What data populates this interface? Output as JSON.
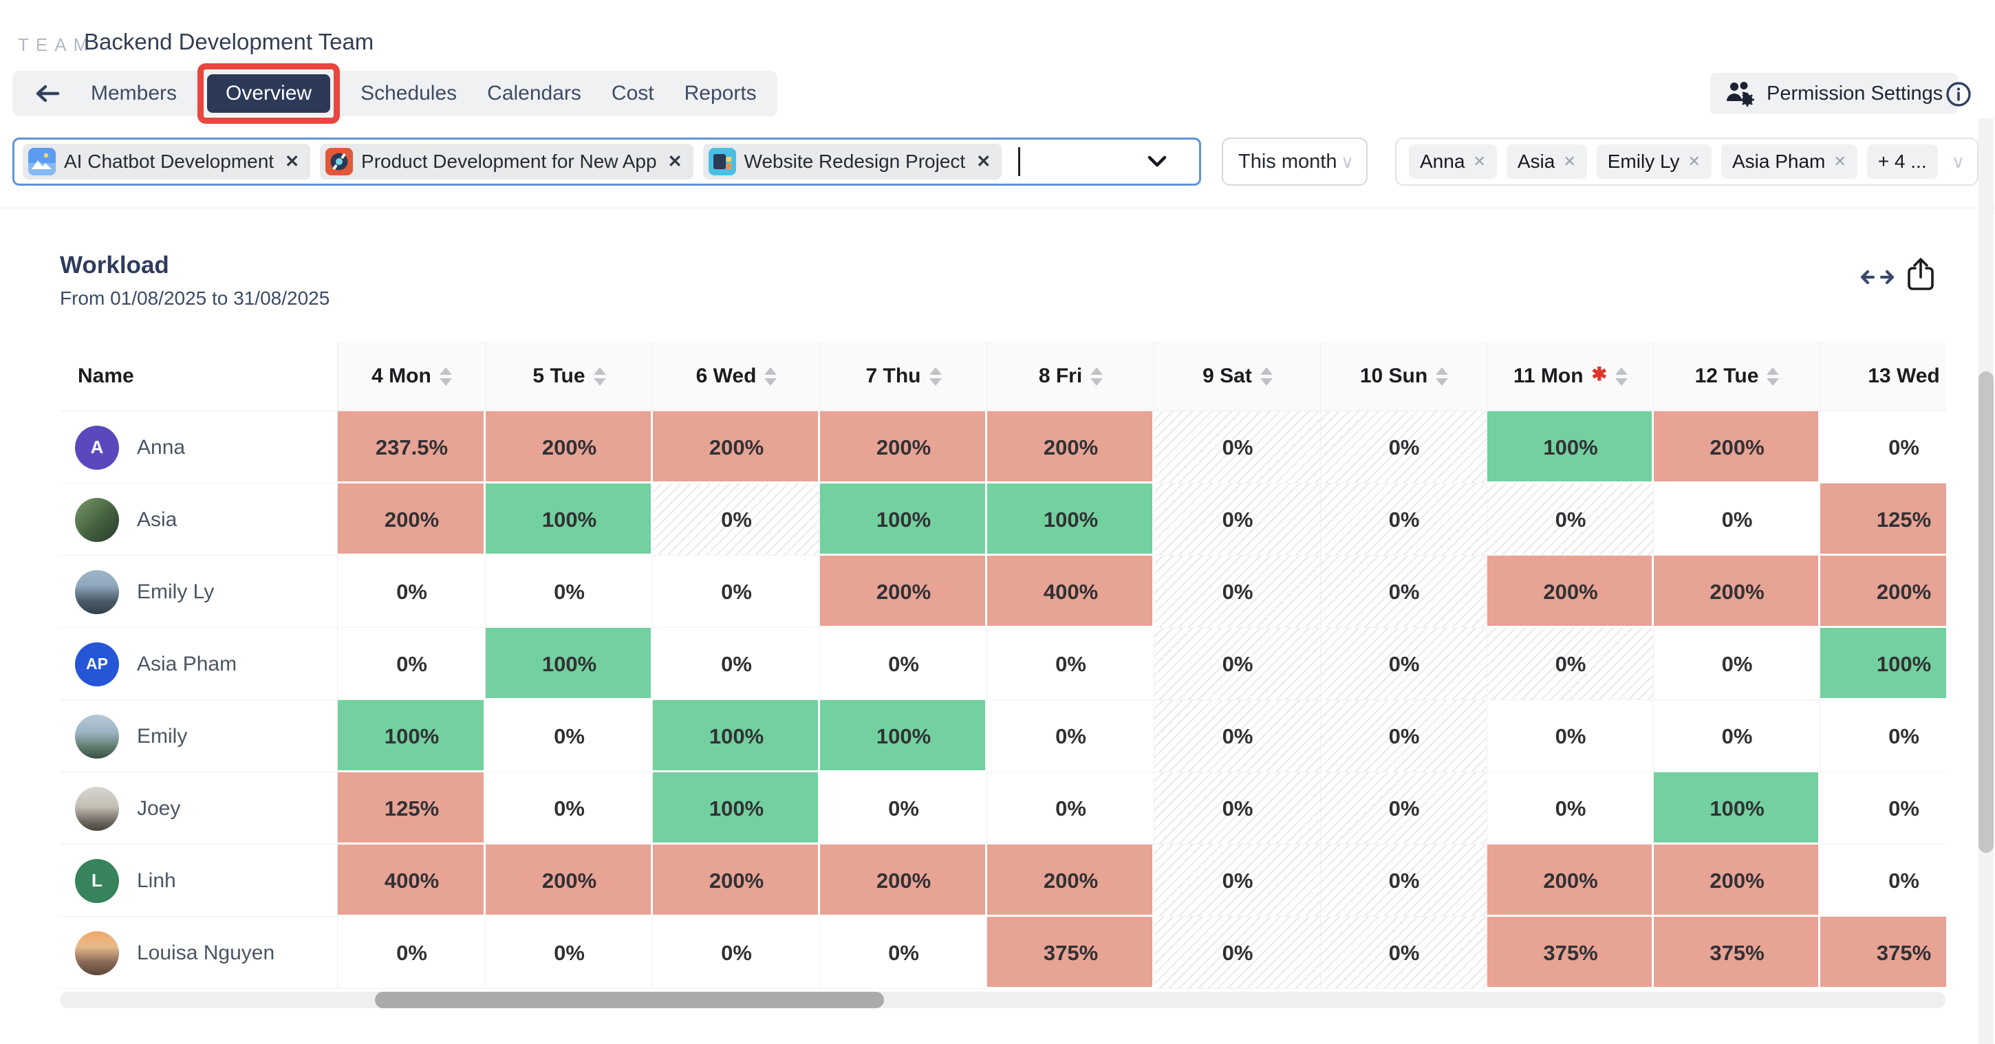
{
  "page": {
    "logo": "TEAM",
    "team_name": "Backend Development Team"
  },
  "nav": {
    "items": [
      {
        "label": "Members",
        "active": false
      },
      {
        "label": "Overview",
        "active": true,
        "annotated": true
      },
      {
        "label": "Schedules",
        "active": false
      },
      {
        "label": "Calendars",
        "active": false
      },
      {
        "label": "Cost",
        "active": false
      },
      {
        "label": "Reports",
        "active": false
      }
    ],
    "permission_settings_label": "Permission Settings"
  },
  "filters": {
    "project_tags": [
      {
        "name": "AI Chatbot Development",
        "icon": "image-icon",
        "icon_bg": "#5b9cf0"
      },
      {
        "name": "Product Development for New App",
        "icon": "disc-icon",
        "icon_bg": "#e2593a"
      },
      {
        "name": "Website Redesign Project",
        "icon": "layout-icon",
        "icon_bg": "#49c0e3"
      }
    ],
    "period_label": "This month",
    "member_tags": [
      "Anna",
      "Asia",
      "Emily Ly",
      "Asia Pham"
    ],
    "member_overflow": "+ 4 ..."
  },
  "workload": {
    "title": "Workload",
    "date_range": "From 01/08/2025 to 31/08/2025",
    "name_column": "Name",
    "day_columns": [
      {
        "label": "4 Mon",
        "sortable": true
      },
      {
        "label": "5 Tue",
        "sortable": true
      },
      {
        "label": "6 Wed",
        "sortable": true
      },
      {
        "label": "7 Thu",
        "sortable": true
      },
      {
        "label": "8 Fri",
        "sortable": true
      },
      {
        "label": "9 Sat",
        "sortable": true
      },
      {
        "label": "10 Sun",
        "sortable": true
      },
      {
        "label": "11 Mon",
        "sortable": true,
        "marked": true
      },
      {
        "label": "12 Tue",
        "sortable": true
      },
      {
        "label": "13 Wed",
        "sortable": false
      }
    ],
    "rows": [
      {
        "name": "Anna",
        "avatar": {
          "type": "initials",
          "text": "A",
          "color": "#5a49bd"
        },
        "cells": [
          {
            "v": "237.5%",
            "s": "over"
          },
          {
            "v": "200%",
            "s": "over"
          },
          {
            "v": "200%",
            "s": "over"
          },
          {
            "v": "200%",
            "s": "over"
          },
          {
            "v": "200%",
            "s": "over"
          },
          {
            "v": "0%",
            "s": "off"
          },
          {
            "v": "0%",
            "s": "off"
          },
          {
            "v": "100%",
            "s": "full"
          },
          {
            "v": "200%",
            "s": "over"
          },
          {
            "v": "0%",
            "s": "zero"
          }
        ]
      },
      {
        "name": "Asia",
        "avatar": {
          "type": "photo",
          "photo": "asia"
        },
        "cells": [
          {
            "v": "200%",
            "s": "over"
          },
          {
            "v": "100%",
            "s": "full"
          },
          {
            "v": "0%",
            "s": "off"
          },
          {
            "v": "100%",
            "s": "full"
          },
          {
            "v": "100%",
            "s": "full"
          },
          {
            "v": "0%",
            "s": "off"
          },
          {
            "v": "0%",
            "s": "off"
          },
          {
            "v": "0%",
            "s": "off"
          },
          {
            "v": "0%",
            "s": "zero"
          },
          {
            "v": "125%",
            "s": "over"
          }
        ]
      },
      {
        "name": "Emily Ly",
        "avatar": {
          "type": "photo",
          "photo": "emily-ly"
        },
        "cells": [
          {
            "v": "0%",
            "s": "zero"
          },
          {
            "v": "0%",
            "s": "zero"
          },
          {
            "v": "0%",
            "s": "zero"
          },
          {
            "v": "200%",
            "s": "over"
          },
          {
            "v": "400%",
            "s": "over"
          },
          {
            "v": "0%",
            "s": "off"
          },
          {
            "v": "0%",
            "s": "off"
          },
          {
            "v": "200%",
            "s": "over"
          },
          {
            "v": "200%",
            "s": "over"
          },
          {
            "v": "200%",
            "s": "over"
          }
        ]
      },
      {
        "name": "Asia Pham",
        "avatar": {
          "type": "initials",
          "text": "AP",
          "color": "#2456d6"
        },
        "cells": [
          {
            "v": "0%",
            "s": "zero"
          },
          {
            "v": "100%",
            "s": "full"
          },
          {
            "v": "0%",
            "s": "zero"
          },
          {
            "v": "0%",
            "s": "zero"
          },
          {
            "v": "0%",
            "s": "zero"
          },
          {
            "v": "0%",
            "s": "off"
          },
          {
            "v": "0%",
            "s": "off"
          },
          {
            "v": "0%",
            "s": "off"
          },
          {
            "v": "0%",
            "s": "zero"
          },
          {
            "v": "100%",
            "s": "full"
          }
        ]
      },
      {
        "name": "Emily",
        "avatar": {
          "type": "photo",
          "photo": "emily"
        },
        "cells": [
          {
            "v": "100%",
            "s": "full"
          },
          {
            "v": "0%",
            "s": "zero"
          },
          {
            "v": "100%",
            "s": "full"
          },
          {
            "v": "100%",
            "s": "full"
          },
          {
            "v": "0%",
            "s": "zero"
          },
          {
            "v": "0%",
            "s": "off"
          },
          {
            "v": "0%",
            "s": "off"
          },
          {
            "v": "0%",
            "s": "zero"
          },
          {
            "v": "0%",
            "s": "zero"
          },
          {
            "v": "0%",
            "s": "zero"
          }
        ]
      },
      {
        "name": "Joey",
        "avatar": {
          "type": "photo",
          "photo": "joey"
        },
        "cells": [
          {
            "v": "125%",
            "s": "over"
          },
          {
            "v": "0%",
            "s": "zero"
          },
          {
            "v": "100%",
            "s": "full"
          },
          {
            "v": "0%",
            "s": "zero"
          },
          {
            "v": "0%",
            "s": "zero"
          },
          {
            "v": "0%",
            "s": "off"
          },
          {
            "v": "0%",
            "s": "off"
          },
          {
            "v": "0%",
            "s": "zero"
          },
          {
            "v": "100%",
            "s": "full"
          },
          {
            "v": "0%",
            "s": "zero"
          }
        ]
      },
      {
        "name": "Linh",
        "avatar": {
          "type": "initials",
          "text": "L",
          "color": "#37835c"
        },
        "cells": [
          {
            "v": "400%",
            "s": "over"
          },
          {
            "v": "200%",
            "s": "over"
          },
          {
            "v": "200%",
            "s": "over"
          },
          {
            "v": "200%",
            "s": "over"
          },
          {
            "v": "200%",
            "s": "over"
          },
          {
            "v": "0%",
            "s": "off"
          },
          {
            "v": "0%",
            "s": "off"
          },
          {
            "v": "200%",
            "s": "over"
          },
          {
            "v": "200%",
            "s": "over"
          },
          {
            "v": "0%",
            "s": "zero"
          }
        ]
      },
      {
        "name": "Louisa Nguyen",
        "avatar": {
          "type": "photo",
          "photo": "louisa"
        },
        "cells": [
          {
            "v": "0%",
            "s": "zero"
          },
          {
            "v": "0%",
            "s": "zero"
          },
          {
            "v": "0%",
            "s": "zero"
          },
          {
            "v": "0%",
            "s": "zero"
          },
          {
            "v": "375%",
            "s": "over"
          },
          {
            "v": "0%",
            "s": "off"
          },
          {
            "v": "0%",
            "s": "off"
          },
          {
            "v": "375%",
            "s": "over"
          },
          {
            "v": "375%",
            "s": "over"
          },
          {
            "v": "375%",
            "s": "over"
          }
        ]
      }
    ]
  },
  "colors": {
    "overload_cell": "#e7a394",
    "full_cell": "#73d09f",
    "annotation_red": "#e8463e",
    "nav_active_bg": "#2c3a58",
    "input_focus_border": "#5f93d8"
  }
}
